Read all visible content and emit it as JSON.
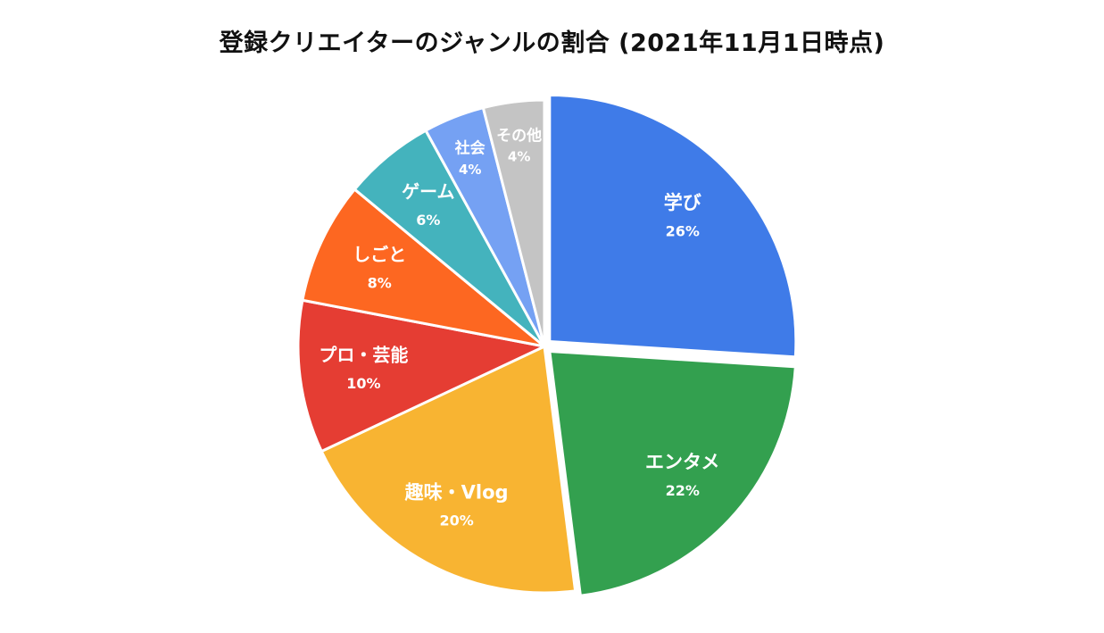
{
  "chart_data": {
    "type": "pie",
    "title": "登録クリエイターのジャンルの割合 (2021年11月1日時点)",
    "slices": [
      {
        "label": "学び",
        "value": 26,
        "value_label": "26%",
        "color": "#3f7be8"
      },
      {
        "label": "エンタメ",
        "value": 22,
        "value_label": "22%",
        "color": "#33a04f"
      },
      {
        "label": "趣味・Vlog",
        "value": 20,
        "value_label": "20%",
        "color": "#f8b432"
      },
      {
        "label": "プロ・芸能",
        "value": 10,
        "value_label": "10%",
        "color": "#e53d33"
      },
      {
        "label": "しごと",
        "value": 8,
        "value_label": "8%",
        "color": "#fd6721"
      },
      {
        "label": "ゲーム",
        "value": 6,
        "value_label": "6%",
        "color": "#44b3bd"
      },
      {
        "label": "社会",
        "value": 4,
        "value_label": "4%",
        "color": "#75a1f3"
      },
      {
        "label": "その他",
        "value": 4,
        "value_label": "4%",
        "color": "#c4c4c4"
      }
    ],
    "start_angle": "12 o'clock",
    "direction": "clockwise",
    "exploded_slices": [
      "学び",
      "エンタメ"
    ],
    "legend": "none"
  }
}
